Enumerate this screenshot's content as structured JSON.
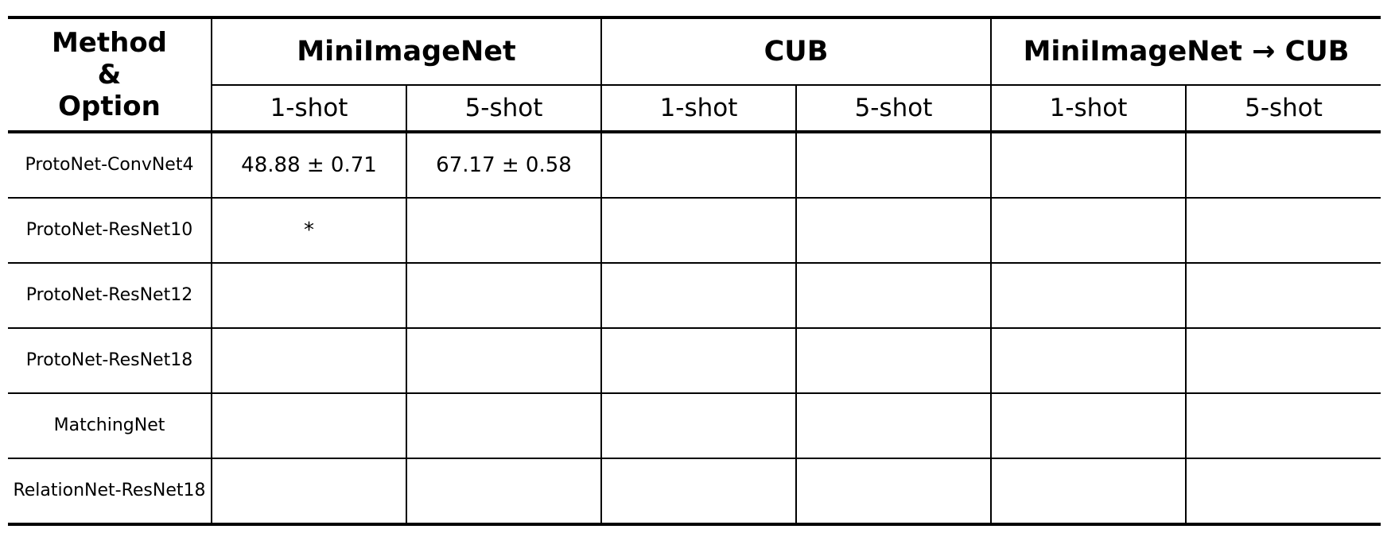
{
  "table": {
    "method_header_lines": [
      "Method",
      "&",
      "Option"
    ],
    "groups": [
      {
        "label": "MiniImageNet",
        "shots": [
          "1-shot",
          "5-shot"
        ]
      },
      {
        "label": "CUB",
        "shots": [
          "1-shot",
          "5-shot"
        ]
      },
      {
        "label": "MiniImageNet → CUB",
        "shots": [
          "1-shot",
          "5-shot"
        ]
      }
    ],
    "rows": [
      {
        "method": "ProtoNet-ConvNet4",
        "values": [
          "48.88 ± 0.71",
          "67.17 ± 0.58",
          "",
          "",
          "",
          ""
        ]
      },
      {
        "method": "ProtoNet-ResNet10",
        "values": [
          "*",
          "",
          "",
          "",
          "",
          ""
        ]
      },
      {
        "method": "ProtoNet-ResNet12",
        "values": [
          "",
          "",
          "",
          "",
          "",
          ""
        ]
      },
      {
        "method": "ProtoNet-ResNet18",
        "values": [
          "",
          "",
          "",
          "",
          "",
          ""
        ]
      },
      {
        "method": "MatchingNet",
        "values": [
          "",
          "",
          "",
          "",
          "",
          ""
        ]
      },
      {
        "method": "RelationNet-ResNet18",
        "values": [
          "",
          "",
          "",
          "",
          "",
          ""
        ]
      }
    ]
  }
}
